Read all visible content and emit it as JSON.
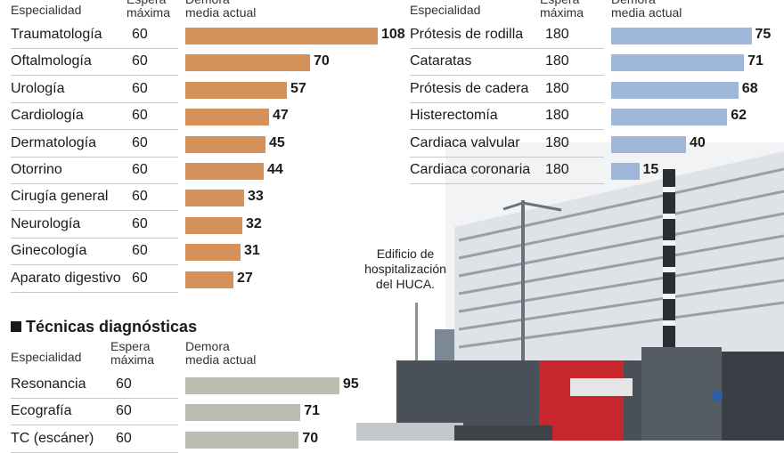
{
  "caption": [
    "Edificio de",
    "hospitalización",
    "del HUCA."
  ],
  "colors": {
    "consultas": "#d4915a",
    "quirurgicas": "#9db6d9",
    "diagnosticas": "#bdbcb0"
  },
  "chart_data": [
    {
      "type": "bar",
      "headers": {
        "especialidad": "Especialidad",
        "espera": [
          "Espera",
          "máxima"
        ],
        "demora": [
          "Demora",
          "media actual"
        ]
      },
      "categories": [
        "Traumatología",
        "Oftalmología",
        "Urología",
        "Cardiología",
        "Dermatología",
        "Otorrino",
        "Cirugía general",
        "Neurología",
        "Ginecología",
        "Aparato digestivo"
      ],
      "espera_maxima": [
        60,
        60,
        60,
        60,
        60,
        60,
        60,
        60,
        60,
        60
      ],
      "values": [
        108,
        70,
        57,
        47,
        45,
        44,
        33,
        32,
        31,
        27
      ]
    },
    {
      "type": "bar",
      "headers": {
        "especialidad": "Especialidad",
        "espera": [
          "Espera",
          "máxima"
        ],
        "demora": [
          "Demora",
          "media actual"
        ]
      },
      "categories": [
        "Prótesis de rodilla",
        "Cataratas",
        "Prótesis de cadera",
        "Histerectomía",
        "Cardiaca valvular",
        "Cardiaca coronaria"
      ],
      "espera_maxima": [
        180,
        180,
        180,
        180,
        180,
        180
      ],
      "values": [
        75,
        71,
        68,
        62,
        40,
        15
      ]
    },
    {
      "type": "bar",
      "title": "Técnicas diagnósticas",
      "headers": {
        "especialidad": "Especialidad",
        "espera": [
          "Espera",
          "máxima"
        ],
        "demora": [
          "Demora",
          "media actual"
        ]
      },
      "categories": [
        "Resonancia",
        "Ecografía",
        "TC (escáner)"
      ],
      "espera_maxima": [
        60,
        60,
        60
      ],
      "values": [
        95,
        71,
        70
      ]
    }
  ]
}
